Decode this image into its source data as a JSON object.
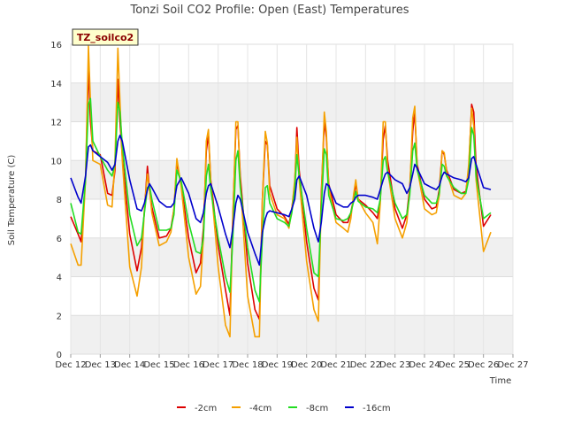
{
  "chart_data": {
    "type": "line",
    "title": "Tonzi Soil CO2 Profile: Open (East) Temperatures",
    "xlabel": "Time",
    "ylabel": "Soil Temperature (C)",
    "site_label": "TZ_soilco2",
    "x_ticks": [
      "Dec 12",
      "Dec 13",
      "Dec 14",
      "Dec 15",
      "Dec 16",
      "Dec 17",
      "Dec 18",
      "Dec 19",
      "Dec 20",
      "Dec 21",
      "Dec 22",
      "Dec 23",
      "Dec 24",
      "Dec 25",
      "Dec 26",
      "Dec 27"
    ],
    "xlim": [
      12,
      27
    ],
    "ylim": [
      0,
      16
    ],
    "y_ticks": [
      0,
      2,
      4,
      6,
      8,
      10,
      12,
      14,
      16
    ],
    "grid": true,
    "legend_position": "bottom",
    "series": [
      {
        "name": "-2cm",
        "color": "#dd0000",
        "x": [
          12.0,
          12.25,
          12.35,
          12.5,
          12.6,
          12.67,
          12.75,
          13.0,
          13.25,
          13.4,
          13.5,
          13.6,
          13.67,
          13.75,
          14.0,
          14.25,
          14.4,
          14.5,
          14.6,
          14.67,
          14.75,
          15.0,
          15.25,
          15.4,
          15.5,
          15.6,
          15.75,
          16.0,
          16.25,
          16.4,
          16.5,
          16.6,
          16.67,
          16.75,
          17.0,
          17.25,
          17.4,
          17.5,
          17.6,
          17.67,
          17.75,
          18.0,
          18.25,
          18.4,
          18.5,
          18.6,
          18.67,
          18.75,
          19.0,
          19.25,
          19.4,
          19.5,
          19.6,
          19.67,
          19.75,
          20.0,
          20.25,
          20.4,
          20.5,
          20.6,
          20.67,
          20.75,
          21.0,
          21.25,
          21.4,
          21.5,
          21.6,
          21.67,
          21.75,
          22.0,
          22.25,
          22.4,
          22.5,
          22.6,
          22.67,
          22.75,
          23.0,
          23.25,
          23.4,
          23.5,
          23.6,
          23.67,
          23.75,
          24.0,
          24.25,
          24.4,
          24.5,
          24.6,
          24.67,
          24.75,
          25.0,
          25.25,
          25.4,
          25.5,
          25.6,
          25.67,
          25.75,
          26.0,
          26.25
        ],
        "y": [
          7.1,
          6.2,
          5.8,
          9.0,
          14.9,
          12.0,
          10.5,
          10.3,
          8.3,
          8.2,
          9.5,
          14.2,
          12.0,
          10.2,
          6.2,
          4.3,
          5.5,
          7.4,
          9.7,
          8.5,
          7.6,
          6.0,
          6.1,
          6.5,
          7.5,
          9.9,
          8.7,
          6.0,
          4.2,
          4.7,
          6.5,
          10.5,
          11.3,
          9.0,
          5.6,
          3.3,
          2.0,
          7.2,
          11.6,
          11.8,
          9.2,
          4.7,
          2.3,
          1.8,
          8.0,
          11.0,
          10.8,
          8.7,
          7.5,
          7.1,
          6.7,
          7.5,
          8.8,
          11.7,
          9.5,
          5.8,
          3.4,
          2.8,
          8.3,
          12.0,
          11.2,
          8.8,
          7.2,
          6.8,
          6.8,
          7.3,
          8.1,
          8.8,
          8.0,
          7.7,
          7.3,
          7.0,
          8.0,
          11.1,
          11.8,
          10.0,
          7.5,
          6.5,
          7.2,
          8.6,
          11.5,
          12.5,
          9.8,
          8.0,
          7.5,
          7.6,
          8.5,
          10.5,
          10.3,
          9.5,
          8.5,
          8.3,
          8.4,
          9.5,
          12.9,
          12.5,
          9.7,
          6.6,
          7.2
        ]
      },
      {
        "name": "-4cm",
        "color": "#f5a000",
        "x": [
          12.0,
          12.25,
          12.35,
          12.5,
          12.6,
          12.67,
          12.75,
          13.0,
          13.25,
          13.4,
          13.5,
          13.6,
          13.67,
          13.75,
          14.0,
          14.25,
          14.4,
          14.5,
          14.6,
          14.67,
          14.75,
          15.0,
          15.25,
          15.4,
          15.5,
          15.6,
          15.75,
          16.0,
          16.25,
          16.4,
          16.5,
          16.6,
          16.67,
          16.75,
          17.0,
          17.25,
          17.4,
          17.5,
          17.6,
          17.67,
          17.75,
          18.0,
          18.25,
          18.4,
          18.5,
          18.6,
          18.67,
          18.75,
          19.0,
          19.25,
          19.4,
          19.5,
          19.6,
          19.67,
          19.75,
          20.0,
          20.25,
          20.4,
          20.5,
          20.6,
          20.67,
          20.75,
          21.0,
          21.25,
          21.4,
          21.5,
          21.6,
          21.67,
          21.75,
          22.0,
          22.25,
          22.4,
          22.5,
          22.6,
          22.67,
          22.75,
          23.0,
          23.25,
          23.4,
          23.5,
          23.6,
          23.67,
          23.75,
          24.0,
          24.25,
          24.4,
          24.5,
          24.6,
          24.67,
          24.75,
          25.0,
          25.25,
          25.4,
          25.5,
          25.6,
          25.67,
          25.75,
          26.0,
          26.25
        ],
        "y": [
          5.7,
          4.6,
          4.6,
          9.0,
          15.9,
          13.0,
          10.0,
          9.8,
          7.7,
          7.6,
          10.0,
          15.8,
          13.0,
          10.0,
          4.5,
          3.0,
          4.5,
          7.5,
          9.3,
          8.5,
          7.3,
          5.6,
          5.8,
          6.3,
          7.5,
          10.1,
          8.6,
          5.0,
          3.1,
          3.5,
          6.0,
          11.0,
          11.6,
          8.9,
          4.5,
          1.5,
          0.9,
          7.0,
          12.0,
          12.0,
          8.9,
          3.0,
          0.9,
          0.9,
          8.0,
          11.5,
          10.9,
          8.3,
          7.2,
          7.0,
          6.5,
          7.5,
          9.0,
          11.2,
          9.0,
          4.8,
          2.3,
          1.7,
          8.0,
          12.5,
          11.5,
          8.6,
          6.8,
          6.5,
          6.3,
          7.0,
          8.3,
          9.0,
          8.0,
          7.3,
          6.8,
          5.7,
          7.8,
          12.0,
          12.0,
          9.5,
          7.0,
          6.0,
          6.8,
          8.4,
          12.2,
          12.8,
          9.6,
          7.5,
          7.2,
          7.3,
          8.2,
          10.5,
          10.4,
          9.4,
          8.2,
          8.0,
          8.3,
          9.8,
          12.7,
          11.8,
          9.0,
          5.3,
          6.3
        ]
      },
      {
        "name": "-8cm",
        "color": "#22dd22",
        "x": [
          12.0,
          12.25,
          12.35,
          12.5,
          12.6,
          12.67,
          12.75,
          13.0,
          13.25,
          13.4,
          13.5,
          13.6,
          13.67,
          13.75,
          14.0,
          14.25,
          14.4,
          14.5,
          14.6,
          14.67,
          14.75,
          15.0,
          15.25,
          15.4,
          15.5,
          15.6,
          15.75,
          16.0,
          16.25,
          16.4,
          16.5,
          16.6,
          16.67,
          16.75,
          17.0,
          17.25,
          17.4,
          17.5,
          17.6,
          17.67,
          17.75,
          18.0,
          18.25,
          18.4,
          18.5,
          18.6,
          18.67,
          18.75,
          19.0,
          19.25,
          19.4,
          19.5,
          19.6,
          19.67,
          19.75,
          20.0,
          20.25,
          20.4,
          20.5,
          20.6,
          20.67,
          20.75,
          21.0,
          21.25,
          21.4,
          21.5,
          21.6,
          21.67,
          21.75,
          22.0,
          22.25,
          22.4,
          22.5,
          22.6,
          22.67,
          22.75,
          23.0,
          23.25,
          23.4,
          23.5,
          23.6,
          23.67,
          23.75,
          24.0,
          24.25,
          24.4,
          24.5,
          24.6,
          24.67,
          24.75,
          25.0,
          25.25,
          25.4,
          25.5,
          25.6,
          25.67,
          25.75,
          26.0,
          26.25
        ],
        "y": [
          7.8,
          6.3,
          6.2,
          9.0,
          12.9,
          13.2,
          11.0,
          10.2,
          9.5,
          9.2,
          9.8,
          13.0,
          12.5,
          10.8,
          7.2,
          5.6,
          6.0,
          7.3,
          8.6,
          8.7,
          8.0,
          6.4,
          6.4,
          6.5,
          7.2,
          9.5,
          8.9,
          6.8,
          5.3,
          5.2,
          6.0,
          9.2,
          9.8,
          8.5,
          6.0,
          4.0,
          3.2,
          6.0,
          10.0,
          10.5,
          8.6,
          5.5,
          3.3,
          2.7,
          6.0,
          8.6,
          8.7,
          7.8,
          7.0,
          6.8,
          6.6,
          7.3,
          8.5,
          10.3,
          9.2,
          6.5,
          4.2,
          4.0,
          7.5,
          10.6,
          10.3,
          8.2,
          7.0,
          6.9,
          7.0,
          7.3,
          7.9,
          8.4,
          7.9,
          7.6,
          7.5,
          7.3,
          8.0,
          10.0,
          10.2,
          9.4,
          7.8,
          7.0,
          7.2,
          8.2,
          10.5,
          10.9,
          9.5,
          8.2,
          7.8,
          7.8,
          8.3,
          9.8,
          9.7,
          9.2,
          8.6,
          8.3,
          8.3,
          9.0,
          11.7,
          11.3,
          9.2,
          7.0,
          7.3
        ]
      },
      {
        "name": "-16cm",
        "color": "#0000cc",
        "x": [
          12.0,
          12.25,
          12.35,
          12.5,
          12.6,
          12.67,
          12.75,
          13.0,
          13.25,
          13.4,
          13.5,
          13.6,
          13.67,
          13.75,
          14.0,
          14.25,
          14.4,
          14.5,
          14.6,
          14.67,
          14.75,
          15.0,
          15.25,
          15.4,
          15.5,
          15.6,
          15.75,
          16.0,
          16.25,
          16.4,
          16.5,
          16.6,
          16.67,
          16.75,
          17.0,
          17.25,
          17.4,
          17.5,
          17.6,
          17.67,
          17.75,
          18.0,
          18.25,
          18.4,
          18.5,
          18.6,
          18.67,
          18.75,
          19.0,
          19.25,
          19.4,
          19.5,
          19.6,
          19.67,
          19.75,
          20.0,
          20.25,
          20.4,
          20.5,
          20.6,
          20.67,
          20.75,
          21.0,
          21.25,
          21.4,
          21.5,
          21.6,
          21.67,
          21.75,
          22.0,
          22.25,
          22.4,
          22.5,
          22.6,
          22.67,
          22.75,
          23.0,
          23.25,
          23.4,
          23.5,
          23.6,
          23.67,
          23.75,
          24.0,
          24.25,
          24.4,
          24.5,
          24.6,
          24.67,
          24.75,
          25.0,
          25.25,
          25.4,
          25.5,
          25.6,
          25.67,
          25.75,
          26.0,
          26.25
        ],
        "y": [
          9.1,
          8.1,
          7.8,
          9.2,
          10.7,
          10.8,
          10.5,
          10.2,
          9.9,
          9.5,
          9.8,
          11.0,
          11.3,
          11.0,
          9.0,
          7.5,
          7.4,
          7.8,
          8.5,
          8.8,
          8.6,
          7.9,
          7.6,
          7.6,
          7.8,
          8.7,
          9.1,
          8.3,
          7.0,
          6.8,
          7.3,
          8.3,
          8.7,
          8.8,
          7.6,
          6.2,
          5.5,
          6.5,
          7.8,
          8.2,
          8.0,
          6.3,
          5.2,
          4.6,
          6.3,
          7.0,
          7.3,
          7.4,
          7.3,
          7.2,
          7.1,
          7.5,
          8.0,
          9.0,
          9.2,
          8.2,
          6.5,
          5.8,
          6.8,
          8.3,
          8.8,
          8.7,
          7.8,
          7.6,
          7.6,
          7.8,
          7.9,
          8.1,
          8.2,
          8.2,
          8.1,
          8.0,
          8.5,
          9.0,
          9.3,
          9.4,
          9.0,
          8.8,
          8.3,
          8.6,
          9.3,
          9.8,
          9.6,
          8.8,
          8.6,
          8.5,
          8.7,
          9.2,
          9.4,
          9.3,
          9.1,
          9.0,
          8.9,
          9.1,
          10.1,
          10.2,
          9.8,
          8.6,
          8.5
        ]
      }
    ]
  }
}
